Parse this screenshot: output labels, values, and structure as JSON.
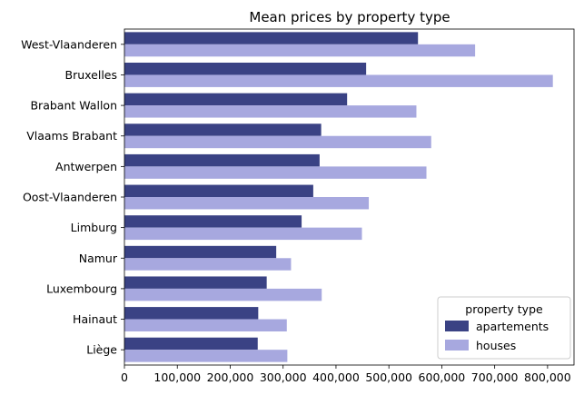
{
  "chart_data": {
    "type": "bar",
    "orientation": "horizontal",
    "title": "Mean prices by property type",
    "xlabel": "",
    "ylabel": "",
    "xlim": [
      0,
      850000
    ],
    "x_ticks": [
      "0",
      "100,000",
      "200,000",
      "300,000",
      "400,000",
      "500,000",
      "600,000",
      "700,000",
      "800,000"
    ],
    "x_tick_values": [
      0,
      100000,
      200000,
      300000,
      400000,
      500000,
      600000,
      700000,
      800000
    ],
    "grid": false,
    "legend": {
      "title": "property type",
      "placement": "bottom-right"
    },
    "categories": [
      "West-Vlaanderen",
      "Bruxelles",
      "Brabant Wallon",
      "Vlaams Brabant",
      "Antwerpen",
      "Oost-Vlaanderen",
      "Limburg",
      "Namur",
      "Luxembourg",
      "Hainaut",
      "Liège"
    ],
    "series": [
      {
        "name": "apartements",
        "color": "#3a4284",
        "values": [
          555000,
          457000,
          421000,
          372000,
          369000,
          357000,
          335000,
          287000,
          269000,
          253000,
          252000
        ]
      },
      {
        "name": "houses",
        "color": "#a7a8df",
        "values": [
          663000,
          810000,
          552000,
          580000,
          571000,
          462000,
          449000,
          315000,
          373000,
          307000,
          308000
        ]
      }
    ]
  }
}
